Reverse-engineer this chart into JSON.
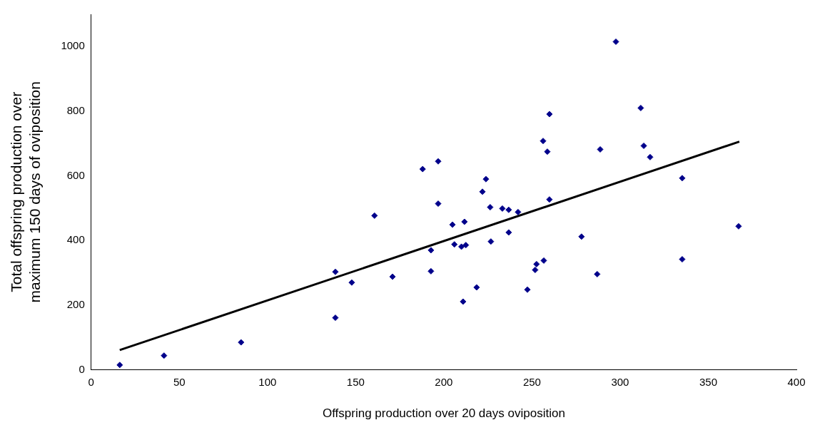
{
  "chart_data": {
    "type": "scatter",
    "xlabel": "Offspring production over 20 days oviposition",
    "ylabel": "Total offspring production over maximum 150 days of oviposition",
    "xlim": [
      0,
      400
    ],
    "xticks": [
      0,
      50,
      100,
      150,
      200,
      250,
      300,
      350,
      400
    ],
    "ylim": [
      0,
      1100
    ],
    "yticks": [
      0,
      200,
      400,
      600,
      800,
      1000
    ],
    "grid": false,
    "legend": false,
    "series": [
      {
        "marker": "diamond",
        "color": "#00008b",
        "x": [
          16.2,
          41.3,
          85,
          138.5,
          138.5,
          147.8,
          160.7,
          170.9,
          188,
          196.8,
          196.8,
          192.7,
          192.7,
          204.9,
          206,
          210,
          212.5,
          211.7,
          210.9,
          218.6,
          221.9,
          223.9,
          226.3,
          226.7,
          233.2,
          236.8,
          236.8,
          242.1,
          247.4,
          251.8,
          252.6,
          256.3,
          256.7,
          258.7,
          259.9,
          259.9,
          278.1,
          287,
          288.7,
          297.6,
          311.7,
          313.4,
          317,
          335.2,
          335.2,
          367.2
        ],
        "values": [
          15,
          44,
          85,
          303,
          161,
          270,
          477,
          288,
          621,
          645,
          514,
          370,
          305,
          449,
          388,
          381,
          386,
          458,
          211,
          255,
          551,
          590,
          503,
          397,
          499,
          495,
          425,
          488,
          248,
          309,
          327,
          708,
          338,
          675,
          791,
          527,
          412,
          296,
          682,
          1015,
          810,
          693,
          658,
          593,
          342,
          444
        ]
      },
      {
        "type": "line",
        "marker": "none",
        "color": "#000000",
        "x": [
          16.2,
          367.6
        ],
        "values": [
          61,
          706
        ]
      }
    ]
  }
}
